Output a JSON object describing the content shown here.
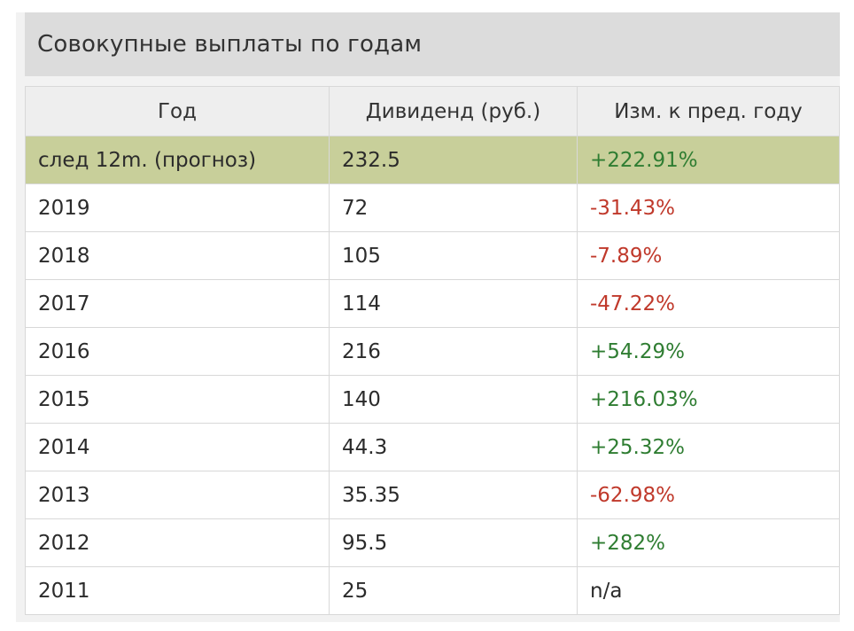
{
  "title": "Совокупные выплаты по годам",
  "columns": [
    "Год",
    "Дивиденд (руб.)",
    "Изм. к пред. году"
  ],
  "colors": {
    "highlight_row": "#c8cf9a",
    "positive": "#2f7d32",
    "negative": "#c0392b"
  },
  "rows": [
    {
      "year": "след 12m. (прогноз)",
      "dividend": "232.5",
      "change": "+222.91%",
      "trend": "pos",
      "highlight": true
    },
    {
      "year": "2019",
      "dividend": "72",
      "change": "-31.43%",
      "trend": "neg",
      "highlight": false
    },
    {
      "year": "2018",
      "dividend": "105",
      "change": "-7.89%",
      "trend": "neg",
      "highlight": false
    },
    {
      "year": "2017",
      "dividend": "114",
      "change": "-47.22%",
      "trend": "neg",
      "highlight": false
    },
    {
      "year": "2016",
      "dividend": "216",
      "change": "+54.29%",
      "trend": "pos",
      "highlight": false
    },
    {
      "year": "2015",
      "dividend": "140",
      "change": "+216.03%",
      "trend": "pos",
      "highlight": false
    },
    {
      "year": "2014",
      "dividend": "44.3",
      "change": "+25.32%",
      "trend": "pos",
      "highlight": false
    },
    {
      "year": "2013",
      "dividend": "35.35",
      "change": "-62.98%",
      "trend": "neg",
      "highlight": false
    },
    {
      "year": "2012",
      "dividend": "95.5",
      "change": "+282%",
      "trend": "pos",
      "highlight": false
    },
    {
      "year": "2011",
      "dividend": "25",
      "change": "n/a",
      "trend": "none",
      "highlight": false
    }
  ]
}
